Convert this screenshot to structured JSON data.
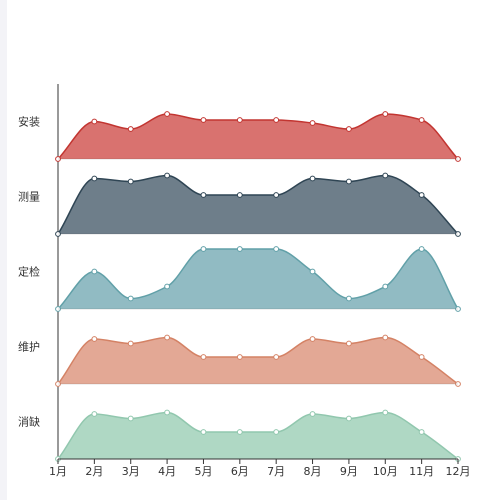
{
  "chart_data": {
    "type": "area",
    "subtype": "stacked-ridgeline",
    "x": [
      "1月",
      "2月",
      "3月",
      "4月",
      "5月",
      "6月",
      "7月",
      "8月",
      "9月",
      "10月",
      "11月",
      "12月"
    ],
    "ylim": [
      0,
      4
    ],
    "grid": false,
    "legend": "none",
    "series": [
      {
        "name": "安装",
        "color": "#d9726f",
        "stroke": "#c23531",
        "values": [
          0,
          2.5,
          2,
          3,
          2.6,
          2.6,
          2.6,
          2.4,
          2,
          3,
          2.6,
          0
        ]
      },
      {
        "name": "测量",
        "color": "#6e7e8a",
        "stroke": "#2f4554",
        "values": [
          0,
          3.7,
          3.5,
          3.9,
          2.6,
          2.6,
          2.6,
          3.7,
          3.5,
          3.9,
          2.6,
          0
        ]
      },
      {
        "name": "定检",
        "color": "#91bbc3",
        "stroke": "#61a0a8",
        "values": [
          0,
          2.5,
          0.7,
          1.5,
          4,
          4,
          4,
          2.5,
          0.7,
          1.5,
          4,
          0
        ]
      },
      {
        "name": "维护",
        "color": "#e3a895",
        "stroke": "#d48265",
        "values": [
          0,
          3,
          2.7,
          3.1,
          1.8,
          1.8,
          1.8,
          3,
          2.7,
          3.1,
          1.8,
          0
        ]
      },
      {
        "name": "消缺",
        "color": "#afd8c4",
        "stroke": "#91c7ae",
        "values": [
          0,
          3,
          2.7,
          3.1,
          1.8,
          1.8,
          1.8,
          3,
          2.7,
          3.1,
          1.8,
          0
        ]
      }
    ]
  }
}
